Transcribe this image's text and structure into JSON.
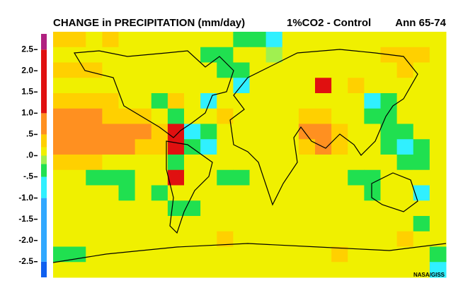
{
  "chart_data": {
    "type": "heatmap",
    "title": "CHANGE in PRECIPITATION (mm/day)",
    "subtitle": "1%CO2 - Control",
    "period": "Ann 65-74",
    "credit": "NASA/GISS",
    "colorbar": {
      "lim": [
        -2.87,
        2.87
      ],
      "bounds": [
        -2.5,
        -1,
        -0.5,
        -0.2,
        0,
        0.2,
        0.5,
        1,
        2.5
      ],
      "colors": [
        "#1060f0",
        "#30a8ff",
        "#30f0ff",
        "#20e050",
        "#a0f050",
        "#f0f000",
        "#ffd000",
        "#ff9020",
        "#e01010",
        "#b02080"
      ],
      "ticks": [
        2.5,
        {
          "value": 2,
          "label": "2.0"
        },
        1.5,
        {
          "value": 1,
          "label": "1.0"
        },
        {
          "value": 0.5,
          "label": ".5"
        },
        {
          "value": 0,
          "label": ".0"
        },
        {
          "value": -0.5,
          "label": "-.5"
        },
        {
          "value": -1,
          "label": "-1.0"
        },
        -1.5,
        {
          "value": -2,
          "label": "-2.0"
        },
        -2.5
      ]
    },
    "values": [
      [
        0.3,
        0.3,
        0.1,
        0.3,
        0.1,
        0.1,
        0.1,
        0.1,
        0.1,
        0.1,
        0.1,
        -0.3,
        -0.3,
        -0.7,
        0.1,
        0.1,
        0.1,
        0.1,
        0.1,
        0.1,
        0.1,
        0.1,
        0.1,
        0.1
      ],
      [
        0.1,
        0.1,
        0.1,
        0.1,
        0.1,
        0.1,
        0.1,
        0.1,
        0.1,
        -0.3,
        -0.3,
        0.1,
        0.1,
        -0.1,
        0.1,
        0.1,
        0.1,
        0.1,
        0.1,
        0.1,
        0.3,
        0.3,
        0.3,
        0.1
      ],
      [
        0.3,
        0.3,
        0.3,
        0.1,
        0.1,
        0.1,
        0.1,
        0.1,
        0.1,
        0.1,
        -0.3,
        -0.3,
        0.1,
        0.1,
        0.1,
        0.1,
        0.1,
        0.1,
        0.1,
        0.1,
        0.1,
        0.3,
        0.1,
        0.1
      ],
      [
        0.1,
        0.1,
        0.1,
        0.1,
        0.1,
        0.1,
        0.1,
        0.1,
        0.1,
        0.1,
        0.1,
        -0.7,
        0.1,
        0.1,
        0.1,
        0.1,
        1.5,
        0.1,
        0.3,
        0.1,
        0.1,
        0.1,
        0.1,
        0.1
      ],
      [
        0.3,
        0.3,
        0.3,
        0.3,
        0.1,
        0.1,
        -0.3,
        0.3,
        0.1,
        -0.7,
        0.1,
        0.1,
        0.1,
        0.1,
        0.1,
        0.1,
        0.1,
        0.1,
        0.1,
        -0.7,
        -0.3,
        0.1,
        0.1,
        0.1
      ],
      [
        0.7,
        0.7,
        0.7,
        0.3,
        0.3,
        0.3,
        0.1,
        -0.3,
        0.1,
        0.1,
        0.3,
        0.1,
        0.1,
        0.1,
        0.1,
        0.3,
        0.3,
        0.1,
        0.1,
        -0.3,
        -0.3,
        0.1,
        0.1,
        0.1
      ],
      [
        0.7,
        0.7,
        0.7,
        0.7,
        0.7,
        0.7,
        0.3,
        1.5,
        -0.7,
        -0.3,
        0.1,
        0.1,
        0.1,
        0.1,
        0.1,
        0.7,
        0.7,
        0.3,
        0.1,
        0.1,
        -0.3,
        -0.3,
        0.1,
        0.1
      ],
      [
        0.7,
        0.7,
        0.7,
        0.7,
        0.7,
        0.3,
        0.3,
        1.5,
        -0.3,
        -0.7,
        0.1,
        0.1,
        0.1,
        0.1,
        0.1,
        0.3,
        0.7,
        0.3,
        0.1,
        0.1,
        -0.3,
        -0.7,
        -0.3,
        0.1
      ],
      [
        0.3,
        0.3,
        0.3,
        0.1,
        0.1,
        0.1,
        0.1,
        -0.3,
        0.1,
        0.1,
        0.1,
        0.1,
        0.1,
        0.1,
        0.1,
        0.1,
        0.1,
        0.1,
        0.1,
        0.1,
        0.1,
        -0.3,
        -0.3,
        0.1
      ],
      [
        0.1,
        0.1,
        -0.3,
        -0.3,
        -0.3,
        0.1,
        0.1,
        1.5,
        0.1,
        0.1,
        -0.3,
        -0.3,
        0.1,
        0.1,
        0.1,
        0.1,
        0.1,
        0.1,
        -0.3,
        -0.3,
        0.1,
        0.1,
        0.1,
        0.1
      ],
      [
        0.1,
        0.1,
        0.1,
        0.1,
        -0.3,
        0.1,
        -0.3,
        0.1,
        0.1,
        0.1,
        0.1,
        0.1,
        0.1,
        0.1,
        0.1,
        0.1,
        0.1,
        0.1,
        0.1,
        -0.3,
        0.1,
        0.1,
        -0.7,
        0.1
      ],
      [
        0.1,
        0.1,
        0.1,
        0.1,
        0.1,
        0.1,
        0.1,
        -0.3,
        -0.3,
        0.1,
        0.1,
        0.1,
        0.1,
        0.1,
        0.1,
        0.1,
        0.1,
        0.1,
        0.1,
        0.1,
        0.1,
        0.1,
        0.1,
        0.1
      ],
      [
        0.1,
        0.1,
        0.1,
        0.1,
        0.1,
        0.1,
        0.1,
        0.1,
        0.1,
        0.1,
        0.1,
        0.1,
        0.1,
        0.1,
        0.1,
        0.1,
        0.1,
        0.1,
        0.1,
        0.1,
        0.1,
        0.1,
        -0.3,
        0.1
      ],
      [
        0.1,
        0.1,
        0.1,
        0.1,
        0.1,
        0.1,
        0.1,
        0.1,
        0.1,
        0.1,
        0.3,
        0.1,
        0.1,
        0.1,
        0.1,
        0.1,
        0.1,
        0.1,
        0.1,
        0.1,
        0.1,
        0.3,
        0.1,
        0.1
      ],
      [
        -0.3,
        -0.3,
        0.1,
        0.1,
        0.1,
        0.1,
        0.1,
        0.1,
        0.1,
        0.1,
        0.1,
        0.1,
        0.1,
        0.1,
        0.1,
        0.1,
        0.1,
        0.3,
        0.1,
        0.1,
        0.1,
        0.1,
        0.1,
        -0.3
      ],
      [
        0.1,
        0.1,
        0.1,
        0.1,
        0.1,
        0.1,
        0.1,
        0.1,
        0.1,
        0.1,
        0.1,
        0.1,
        0.1,
        0.1,
        0.1,
        0.1,
        0.1,
        0.1,
        0.1,
        0.1,
        0.1,
        0.1,
        0.1,
        -0.7
      ]
    ]
  }
}
